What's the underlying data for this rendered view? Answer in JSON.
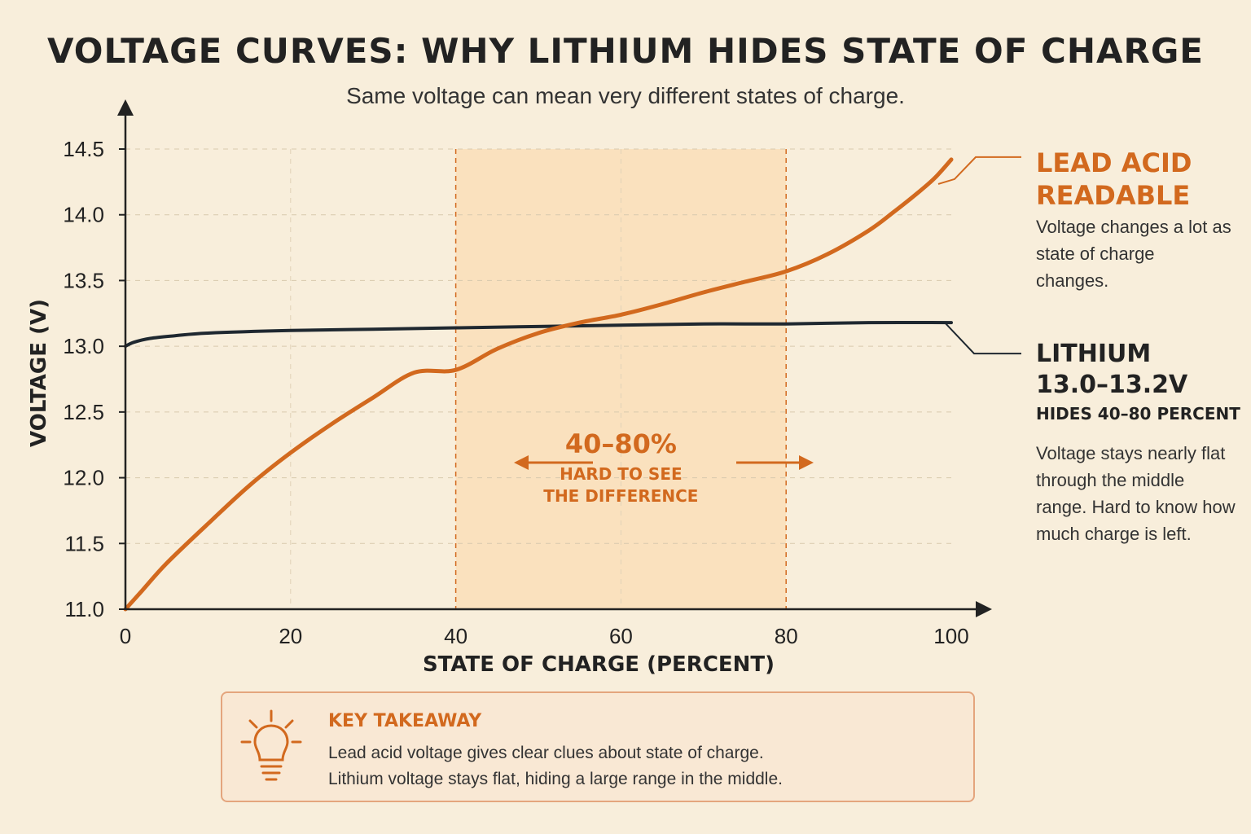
{
  "title": "VOLTAGE CURVES: WHY LITHIUM HIDES STATE OF CHARGE",
  "subtitle": "Same voltage can mean very different states of charge.",
  "colors": {
    "lead_acid": "#d2691e",
    "lithium": "#1f2830",
    "highlight": "#fbdcb4",
    "background": "#f8eedb"
  },
  "chart_data": {
    "type": "line",
    "xlabel": "STATE OF CHARGE (PERCENT)",
    "ylabel": "VOLTAGE (V)",
    "xlim": [
      0,
      100
    ],
    "ylim": [
      11.0,
      14.5
    ],
    "xticks": [
      0,
      20,
      40,
      60,
      80,
      100
    ],
    "yticks": [
      11.0,
      11.5,
      12.0,
      12.5,
      13.0,
      13.5,
      14.0,
      14.5
    ],
    "grid": true,
    "series": [
      {
        "name": "LEAD ACID",
        "x": [
          0,
          2,
          5,
          10,
          15,
          20,
          25,
          30,
          35,
          40,
          45,
          50,
          55,
          60,
          65,
          70,
          75,
          80,
          85,
          90,
          93,
          96,
          98,
          100
        ],
        "y": [
          11.0,
          11.14,
          11.35,
          11.65,
          11.94,
          12.19,
          12.41,
          12.61,
          12.8,
          12.82,
          12.98,
          13.1,
          13.18,
          13.24,
          13.32,
          13.41,
          13.49,
          13.57,
          13.7,
          13.88,
          14.02,
          14.17,
          14.28,
          14.42
        ]
      },
      {
        "name": "LITHIUM",
        "x": [
          0,
          1,
          3,
          6,
          10,
          20,
          30,
          40,
          50,
          60,
          70,
          80,
          90,
          100
        ],
        "y": [
          13.0,
          13.03,
          13.06,
          13.08,
          13.1,
          13.12,
          13.13,
          13.14,
          13.15,
          13.16,
          13.17,
          13.17,
          13.18,
          13.18
        ]
      }
    ],
    "highlight_range": {
      "x": [
        40,
        80
      ],
      "label": "40–80%",
      "note_line1": "HARD TO SEE",
      "note_line2": "THE DIFFERENCE"
    }
  },
  "annotations": {
    "lead_acid": {
      "title_line1": "LEAD ACID",
      "title_line2": "READABLE",
      "text": "Voltage changes a lot as state of charge changes."
    },
    "lithium": {
      "title_line1": "LITHIUM",
      "title_line2": "13.0–13.2V",
      "subtitle": "HIDES 40–80 PERCENT",
      "text": "Voltage stays nearly flat through the middle range. Hard to know how much charge is left."
    }
  },
  "takeaway": {
    "icon": "lightbulb-icon",
    "heading": "KEY TAKEAWAY",
    "line1": "Lead acid voltage gives clear clues about state of charge.",
    "line2": "Lithium voltage stays flat, hiding a large range in the middle."
  }
}
